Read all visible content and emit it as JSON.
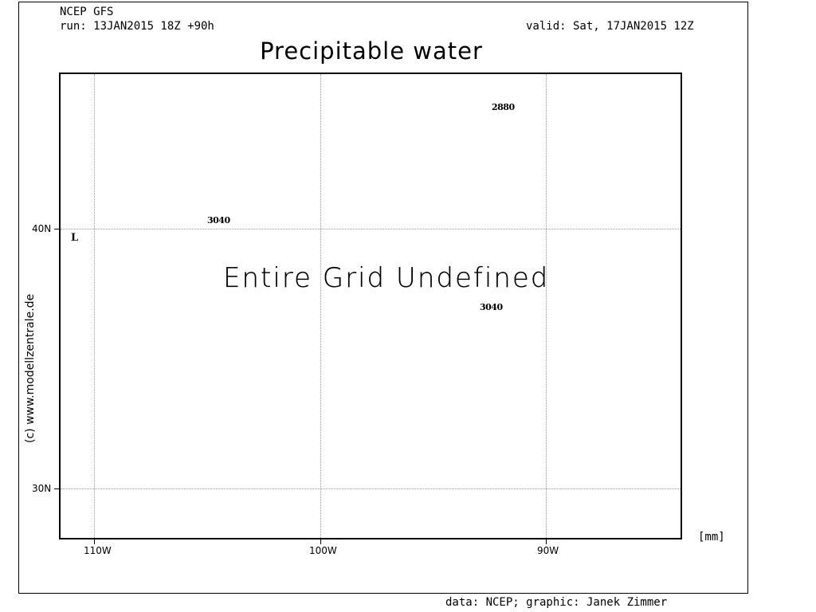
{
  "header": {
    "model": "NCEP GFS",
    "run": "run: 13JAN2015 18Z +90h",
    "valid": "valid: Sat, 17JAN2015 12Z",
    "title": "Precipitable water"
  },
  "map": {
    "grid_message": "Entire Grid Undefined",
    "unit": "[mm]",
    "x_ticks": [
      "110W",
      "100W",
      "90W"
    ],
    "y_ticks": [
      "40N",
      "30N"
    ],
    "markers": {
      "low": "L",
      "label_a": "3040",
      "label_b": "2880",
      "label_c": "3040"
    }
  },
  "footer": {
    "copyright": "(c) www.modellzentrale.de",
    "credit": "data: NCEP; graphic: Janek Zimmer"
  }
}
